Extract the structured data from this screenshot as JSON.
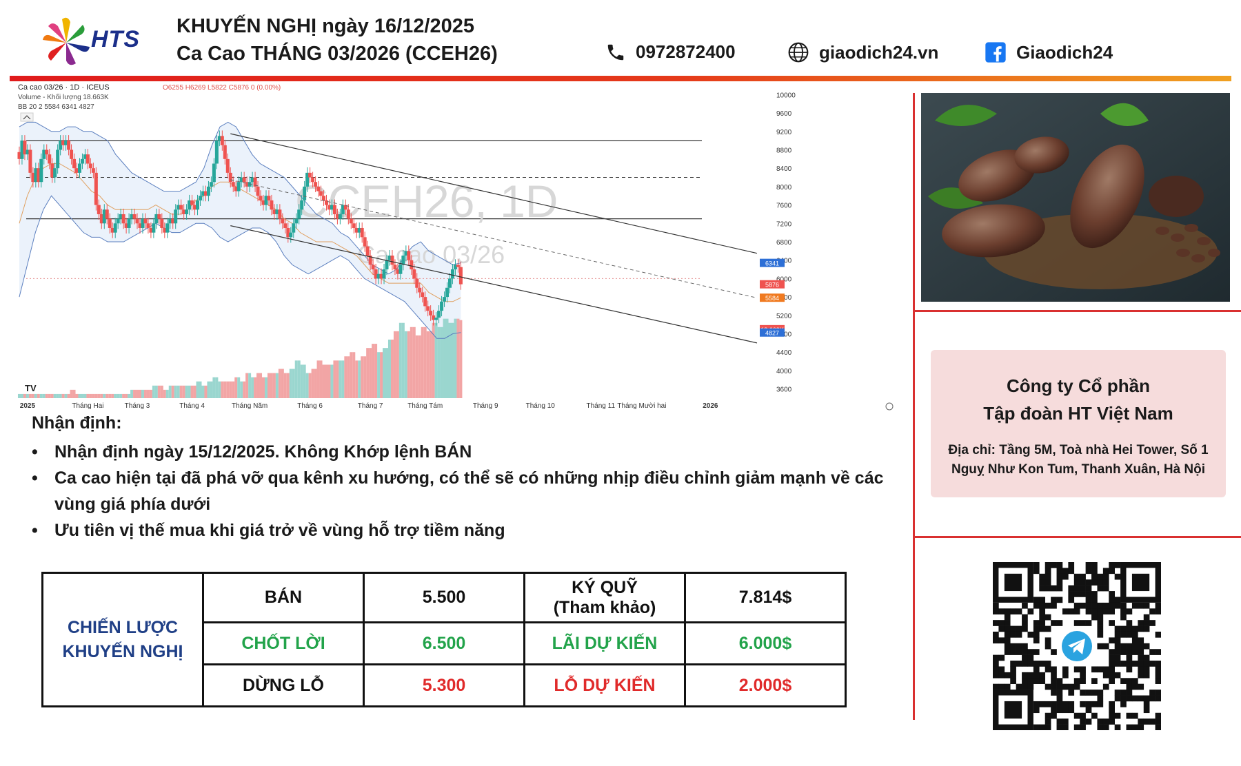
{
  "header": {
    "logo_text": "HTS",
    "title_line1": "KHUYẾN NGHỊ ngày 16/12/2025",
    "title_line2": "Ca Cao THÁNG 03/2026 (CCEH26)",
    "phone": "0972872400",
    "website": "giaodich24.vn",
    "facebook": "Giaodich24"
  },
  "chart_info": {
    "symbol_line": "Ca cao 03/26 · 1D · ICEUS",
    "ohlc": "O6255 H6269 L5822 C5876 0 (0.00%)",
    "volume_line": "Volume - Khối lượng  18.663K",
    "bb_line": "BB 20 2  5584  6341  4827",
    "watermark_symbol": "CCEH26, 1D",
    "watermark_name": "Ca cao 03/26",
    "last_price_tag": "5876",
    "bb_upper_tag": "6341",
    "bb_mid_tag": "5584",
    "bb_lower_tag": "4827",
    "volume_tag": "18.663K",
    "tv_logo": "TV"
  },
  "chart_data": {
    "type": "line",
    "title": "Ca cao 03/26",
    "xlabel": "",
    "ylabel": "",
    "ylim": [
      3400,
      10200
    ],
    "y_ticks": [
      10000,
      9600,
      9200,
      8800,
      8400,
      8000,
      7600,
      7200,
      6800,
      6400,
      6000,
      5600,
      5200,
      4800,
      4400,
      4000,
      3600
    ],
    "x_tick_labels": [
      "2025",
      "Tháng Hai",
      "Tháng 3",
      "Tháng 4",
      "Tháng Năm",
      "Tháng 6",
      "Tháng 7",
      "Tháng Tám",
      "Tháng 9",
      "Tháng 10",
      "Tháng 11",
      "Tháng Mười hai",
      "2026"
    ],
    "x_tick_index": [
      3,
      25,
      43,
      63,
      84,
      106,
      128,
      148,
      170,
      190,
      212,
      227,
      252
    ],
    "series": [
      {
        "name": "Ca cao 03/26",
        "values": [
          8600,
          9000,
          8700,
          8800,
          8300,
          8100,
          8400,
          8100,
          8600,
          8800,
          8700,
          8500,
          8200,
          8400,
          8800,
          9000,
          8900,
          9000,
          8800,
          8600,
          8400,
          8300,
          8500,
          8600,
          8700,
          8500,
          8400,
          8300,
          7600,
          7400,
          7200,
          7500,
          7300,
          7100,
          7000,
          7200,
          7300,
          7400,
          7200,
          7100,
          7300,
          7400,
          7300,
          7200,
          7100,
          7300,
          7200,
          7100,
          7000,
          7200,
          7400,
          7300,
          7100,
          7000,
          7200,
          7300,
          7200,
          7500,
          7600,
          7500,
          7400,
          7500,
          7700,
          7600,
          7500,
          7700,
          7800,
          7900,
          7800,
          8000,
          8100,
          8500,
          9000,
          9100,
          8900,
          8600,
          8300,
          8100,
          8000,
          7900,
          8100,
          8200,
          8100,
          8000,
          8100,
          8200,
          8000,
          7800,
          7700,
          7600,
          7800,
          7700,
          7500,
          7400,
          7500,
          7300,
          7200,
          7100,
          6900,
          7000,
          7200,
          7300,
          7500,
          7700,
          8000,
          8300,
          8200,
          8100,
          8000,
          7900,
          7800,
          7700,
          7600,
          7500,
          7600,
          7400,
          7300,
          7400,
          7600,
          7500,
          7300,
          7200,
          7100,
          7000,
          7100,
          6900,
          6700,
          6500,
          6300,
          6200,
          6000,
          6100,
          6000,
          6200,
          6400,
          6500,
          6300,
          6200,
          6100,
          6300,
          6500,
          6600,
          6400,
          6200,
          6000,
          5800,
          5700,
          5600,
          5400,
          5300,
          5200,
          5100,
          5150,
          5300,
          5500,
          5600,
          5800,
          6000,
          6200,
          6300,
          6250,
          5876
        ],
        "color": "#26a69a"
      },
      {
        "name": "BB upper",
        "values": [
          9300,
          9400,
          9400,
          9300,
          9200,
          9200,
          9300,
          9300,
          9200,
          9200,
          9100,
          9000,
          8700,
          8500,
          8300,
          8200,
          8100,
          8000,
          7900,
          7900,
          7900,
          8000,
          8100,
          8400,
          8900,
          9300,
          9400,
          9300,
          9000,
          8700,
          8500,
          8400,
          8300,
          8200,
          8000,
          7800,
          7600,
          7400,
          7300,
          7200,
          7000,
          6900,
          6700,
          6500,
          6300,
          6200,
          6100,
          6200,
          6500,
          6700,
          6800,
          6600,
          6500,
          6400,
          6300,
          6341
        ],
        "color": "#5b7fbf"
      },
      {
        "name": "BB lower",
        "values": [
          5600,
          6300,
          7000,
          7500,
          7800,
          7600,
          7400,
          7200,
          7000,
          6900,
          6900,
          6800,
          6800,
          6800,
          6900,
          7000,
          7100,
          7200,
          7100,
          7000,
          7000,
          7100,
          7200,
          7200,
          7100,
          6900,
          6800,
          6900,
          7000,
          7100,
          7100,
          7000,
          6800,
          6500,
          6300,
          6200,
          6100,
          6200,
          6300,
          6400,
          6500,
          6400,
          6200,
          6000,
          5900,
          5800,
          5700,
          5600,
          5500,
          5300,
          5100,
          4900,
          4700,
          4700,
          4800,
          4827
        ],
        "color": "#5b7fbf"
      },
      {
        "name": "BB basis",
        "values": [
          7200,
          7800,
          8200,
          8400,
          8500,
          8500,
          8400,
          8300,
          8100,
          7900,
          7800,
          7600,
          7500,
          7500,
          7500,
          7500,
          7500,
          7600,
          7500,
          7400,
          7400,
          7500,
          7700,
          7800,
          8000,
          8100,
          8100,
          8000,
          7900,
          7800,
          7700,
          7600,
          7500,
          7300,
          7200,
          7000,
          6900,
          6800,
          6800,
          6800,
          6700,
          6600,
          6500,
          6300,
          6100,
          6000,
          5900,
          5900,
          5900,
          5900,
          5900,
          5700,
          5600,
          5500,
          5500,
          5584
        ],
        "color": "#e0a060"
      }
    ],
    "volume": [
      1,
      1,
      1,
      1,
      1,
      1,
      1,
      1,
      1,
      2,
      1,
      1,
      1,
      1,
      1,
      1,
      1,
      1,
      1,
      1,
      2,
      2,
      2,
      2,
      3,
      3,
      2,
      3,
      3,
      3,
      3,
      3,
      4,
      3,
      4,
      5,
      4,
      4,
      4,
      5,
      4,
      6,
      5,
      6,
      5,
      6,
      6,
      7,
      6,
      7,
      9,
      8,
      6,
      7,
      9,
      8,
      8,
      9,
      9,
      10,
      11,
      9,
      10,
      12,
      13,
      11,
      12,
      14,
      16,
      18,
      16,
      17,
      15,
      17,
      16,
      18,
      17,
      19,
      18,
      19,
      18.663
    ]
  },
  "analysis": {
    "heading": "Nhận định:",
    "bullet": "•",
    "items": [
      "Nhận định ngày 15/12/2025. Không Khớp lệnh BÁN",
      "Ca cao hiện tại đã phá vỡ qua kênh xu hướng, có thể sẽ có những nhịp điều chỉnh giảm mạnh về các vùng giá phía dưới",
      "Ưu tiên vị thế mua khi giá trở về vùng hỗ trợ tiềm năng"
    ]
  },
  "strategy": {
    "label_line1": "CHIẾN LƯỢC",
    "label_line2": "KHUYẾN NGHỊ",
    "rows": [
      {
        "a": "BÁN",
        "b": "5.500",
        "c1": "KÝ QUỸ",
        "c2": "(Tham khảo)",
        "d": "7.814$"
      },
      {
        "a": "CHỐT LỜI",
        "b": "6.500",
        "c1": "LÃI DỰ KIẾN",
        "c2": "",
        "d": "6.000$"
      },
      {
        "a": "DỪNG LỖ",
        "b": "5.300",
        "c1": "LỖ DỰ KIẾN",
        "c2": "",
        "d": "2.000$"
      }
    ],
    "colors": {
      "green": "#22a34a",
      "red": "#e02a2a",
      "blue": "#1f3f86"
    }
  },
  "company": {
    "name_line1": "Công ty Cổ phần",
    "name_line2": "Tập đoàn HT Việt Nam",
    "address_line1": "Địa chỉ: Tầng 5M, Toà nhà Hei Tower, Số 1",
    "address_line2": "Nguỵ Như Kon Tum, Thanh Xuân, Hà Nội"
  },
  "icons": {
    "phone": "phone-icon",
    "globe": "globe-icon",
    "facebook": "facebook-icon",
    "qr": "telegram-qr-code",
    "telegram": "telegram-icon"
  }
}
